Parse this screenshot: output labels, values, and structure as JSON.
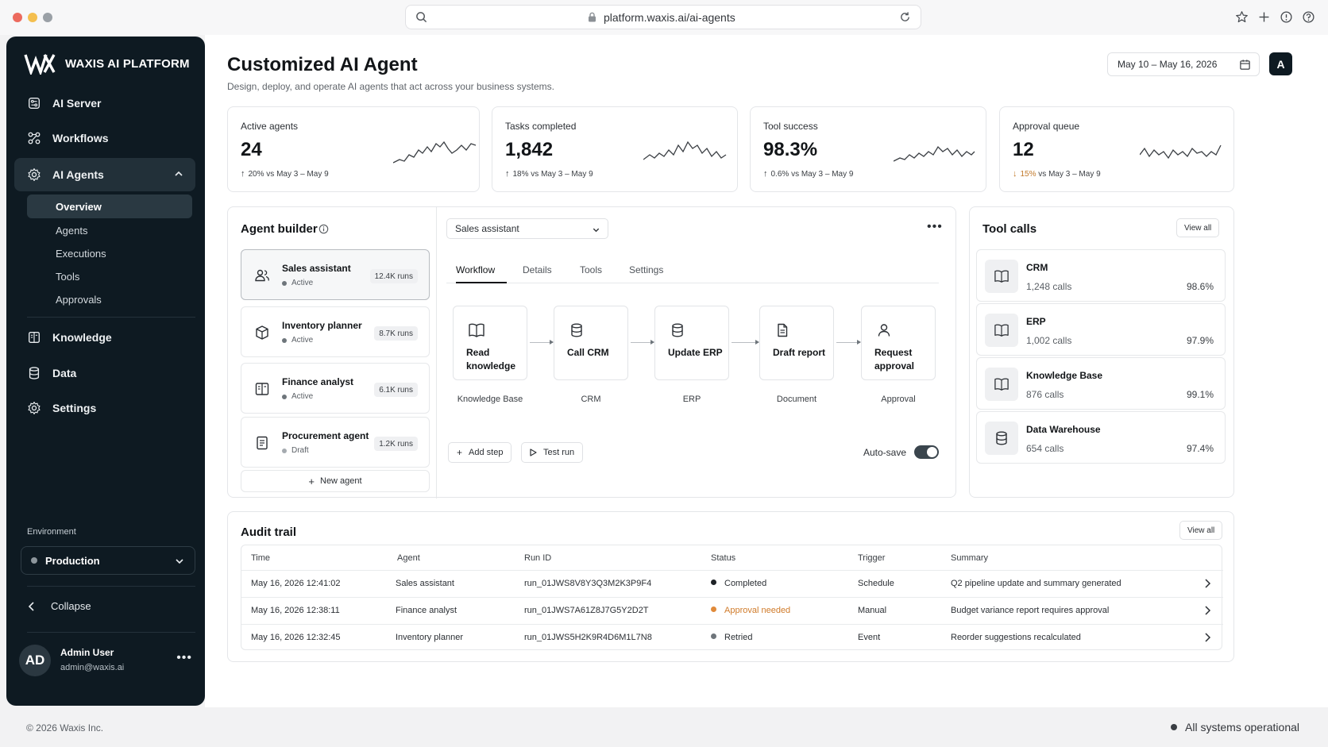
{
  "browser": {
    "url": "platform.waxis.ai/ai-agents"
  },
  "brand": {
    "name": "WAXIS AI PLATFORM"
  },
  "sidebar": {
    "items": [
      {
        "label": "AI Server",
        "icon": "server-icon"
      },
      {
        "label": "Workflows",
        "icon": "workflows-icon"
      },
      {
        "label": "AI Agents",
        "icon": "gear-icon"
      },
      {
        "label": "Knowledge",
        "icon": "book-icon"
      },
      {
        "label": "Data",
        "icon": "database-icon"
      },
      {
        "label": "Settings",
        "icon": "settings-icon"
      }
    ],
    "agents_sub": [
      "Overview",
      "Agents",
      "Executions",
      "Tools",
      "Approvals"
    ],
    "environment_label": "Environment",
    "environment_value": "Production",
    "collapse_label": "Collapse",
    "user": {
      "initials": "AD",
      "name": "Admin User",
      "email": "admin@waxis.ai"
    }
  },
  "header": {
    "title": "Customized AI Agent",
    "subtitle": "Design, deploy, and operate AI agents that act across your business systems.",
    "date_range": "May 10 – May 16, 2026",
    "avatar_initial": "A"
  },
  "kpis": [
    {
      "label": "Active agents",
      "value": "24",
      "delta": "20%",
      "direction": "up",
      "compare": "vs May 3 – May 9"
    },
    {
      "label": "Tasks completed",
      "value": "1,842",
      "delta": "18%",
      "direction": "up",
      "compare": "vs May 3 – May 9"
    },
    {
      "label": "Tool success",
      "value": "98.3%",
      "delta": "0.6%",
      "direction": "up",
      "compare": "vs May 3 – May 9"
    },
    {
      "label": "Approval queue",
      "value": "12",
      "delta": "15%",
      "direction": "down",
      "compare": "vs May 3 – May 9"
    }
  ],
  "builder": {
    "title": "Agent builder",
    "selected_agent": "Sales assistant",
    "agents": [
      {
        "name": "Sales assistant",
        "status": "Active",
        "runs": "12.4K runs"
      },
      {
        "name": "Inventory planner",
        "status": "Active",
        "runs": "8.7K runs"
      },
      {
        "name": "Finance analyst",
        "status": "Active",
        "runs": "6.1K runs"
      },
      {
        "name": "Procurement agent",
        "status": "Draft",
        "runs": "1.2K runs"
      }
    ],
    "new_agent": "New agent",
    "tabs": [
      "Workflow",
      "Details",
      "Tools",
      "Settings"
    ],
    "steps": [
      {
        "line1": "Read",
        "line2": "knowledge",
        "caption": "Knowledge Base"
      },
      {
        "line1": "Call CRM",
        "line2": "",
        "caption": "CRM"
      },
      {
        "line1": "Update ERP",
        "line2": "",
        "caption": "ERP"
      },
      {
        "line1": "Draft report",
        "line2": "",
        "caption": "Document"
      },
      {
        "line1": "Request",
        "line2": "approval",
        "caption": "Approval"
      }
    ],
    "add_step": "Add step",
    "test_run": "Test run",
    "autosave": "Auto-save"
  },
  "tool_calls": {
    "title": "Tool calls",
    "view_all": "View all",
    "items": [
      {
        "name": "CRM",
        "calls": "1,248 calls",
        "pct": "98.6%"
      },
      {
        "name": "ERP",
        "calls": "1,002 calls",
        "pct": "97.9%"
      },
      {
        "name": "Knowledge Base",
        "calls": "876 calls",
        "pct": "99.1%"
      },
      {
        "name": "Data Warehouse",
        "calls": "654 calls",
        "pct": "97.4%"
      }
    ]
  },
  "audit": {
    "title": "Audit trail",
    "view_all": "View all",
    "columns": [
      "Time",
      "Agent",
      "Run ID",
      "Status",
      "Trigger",
      "Summary"
    ],
    "rows": [
      {
        "time": "May 16, 2026 12:41:02",
        "agent": "Sales assistant",
        "run_id": "run_01JWS8V8Y3Q3M2K3P9F4",
        "status": "Completed",
        "status_color": "#2b2f34",
        "trigger": "Schedule",
        "summary": "Q2 pipeline update and summary generated"
      },
      {
        "time": "May 16, 2026 12:38:11",
        "agent": "Finance analyst",
        "run_id": "run_01JWS7A61Z8J7G5Y2D2T",
        "status": "Approval needed",
        "status_color": "#d07b2a",
        "trigger": "Manual",
        "summary": "Budget variance report requires approval"
      },
      {
        "time": "May 16, 2026 12:32:45",
        "agent": "Inventory planner",
        "run_id": "run_01JWS5H2K9R4D6M1L7N8",
        "status": "Retried",
        "status_color": "#6e757b",
        "trigger": "Event",
        "summary": "Reorder suggestions recalculated"
      }
    ]
  },
  "footer": {
    "copyright": "© 2026 Waxis Inc.",
    "status": "All systems operational"
  },
  "colors": {
    "sidebar_bg": "#0e1a22",
    "accent_warning": "#d07b2a"
  }
}
